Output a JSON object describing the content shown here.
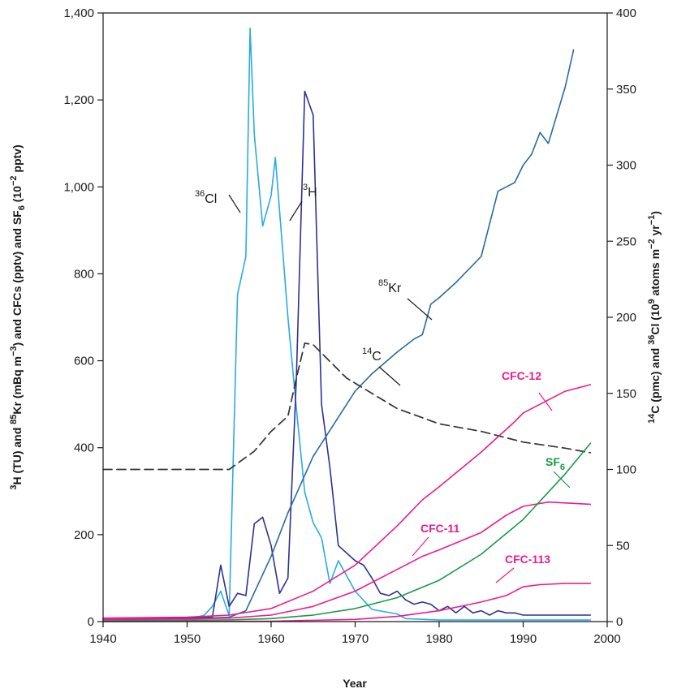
{
  "chart_data": {
    "type": "line",
    "xlabel": "Year",
    "xlim": [
      1940,
      2000
    ],
    "x_ticks": [
      "1940",
      "1950",
      "1960",
      "1970",
      "1980",
      "1990",
      "2000"
    ],
    "ylabel_left": {
      "pre": "",
      "sup1": "3",
      "mid1": "H (TU) and ",
      "sup2": "85",
      "mid2": "Kr (mBq m",
      "sup3": "−3",
      "mid3": ") and CFCs (pptv) and SF",
      "sub": "6",
      "post": " (10",
      "sup4": "−2",
      "end": " pptv)"
    },
    "ylim_left": [
      0,
      1400
    ],
    "y_ticks_left": [
      "0",
      "200",
      "400",
      "600",
      "800",
      "1,000",
      "1,200",
      "1,400"
    ],
    "ylabel_right": {
      "sup1": "14",
      "mid1": "C (pmc) and ",
      "sup2": "36",
      "mid2": "Cl (10",
      "sup3": "9",
      "mid3": " atoms m",
      "sup4": "−2",
      "mid4": " yr",
      "sup5": "−1",
      "end": ")"
    },
    "ylim_right": [
      0,
      400
    ],
    "y_ticks_right": [
      "0",
      "50",
      "100",
      "150",
      "200",
      "250",
      "300",
      "350",
      "400"
    ],
    "colors": {
      "Cl36": "#29abe2",
      "H3": "#2e3192",
      "Kr85": "#2b6a9e",
      "C14": "#333333",
      "CFC": "#ec1c8c",
      "SF6": "#1a9a48"
    },
    "series": [
      {
        "key": "Cl36",
        "axis": "right",
        "style": "solid",
        "label_sup": "36",
        "label_text": "Cl",
        "x": [
          1940,
          1950,
          1952,
          1953,
          1954,
          1955,
          1956,
          1957,
          1957.5,
          1958,
          1959,
          1960,
          1960.5,
          1961,
          1962,
          1963,
          1964,
          1965,
          1966,
          1967,
          1968,
          1970,
          1972,
          1975,
          1976,
          1980,
          1990,
          1998
        ],
        "y": [
          2,
          2,
          4,
          10,
          20,
          4,
          215,
          240,
          390,
          320,
          260,
          280,
          305,
          270,
          200,
          140,
          85,
          65,
          55,
          25,
          40,
          20,
          8,
          5,
          2,
          1,
          1,
          1
        ]
      },
      {
        "key": "H3",
        "axis": "left",
        "style": "solid",
        "label_sup": "3",
        "label_text": "H",
        "x": [
          1940,
          1950,
          1953,
          1954,
          1955,
          1956,
          1957,
          1958,
          1959,
          1960,
          1961,
          1962,
          1963,
          1964,
          1965,
          1966,
          1967,
          1968,
          1970,
          1971,
          1972,
          1973,
          1974,
          1975,
          1976,
          1977,
          1978,
          1979,
          1980,
          1981,
          1982,
          1983,
          1984,
          1985,
          1986,
          1987,
          1988,
          1989,
          1990,
          1995,
          1998
        ],
        "y": [
          5,
          8,
          10,
          130,
          35,
          65,
          60,
          225,
          240,
          175,
          65,
          100,
          560,
          1220,
          1165,
          500,
          355,
          175,
          140,
          130,
          100,
          65,
          60,
          70,
          50,
          40,
          45,
          40,
          25,
          35,
          20,
          35,
          20,
          25,
          15,
          25,
          20,
          20,
          15,
          15,
          15
        ]
      },
      {
        "key": "Kr85",
        "axis": "left",
        "style": "solid",
        "label_sup": "85",
        "label_text": "Kr",
        "x": [
          1940,
          1950,
          1955,
          1957,
          1960,
          1962,
          1965,
          1968,
          1970,
          1972,
          1975,
          1977,
          1978,
          1979,
          1980,
          1982,
          1985,
          1987,
          1989,
          1990,
          1991,
          1992,
          1993,
          1995,
          1996
        ],
        "y": [
          5,
          6,
          10,
          25,
          150,
          250,
          380,
          470,
          530,
          570,
          620,
          650,
          660,
          730,
          745,
          780,
          840,
          990,
          1010,
          1050,
          1075,
          1125,
          1100,
          1230,
          1315
        ]
      },
      {
        "key": "C14",
        "axis": "right",
        "style": "dashed",
        "label_sup": "14",
        "label_text": "C",
        "x": [
          1940,
          1955,
          1958,
          1960,
          1962,
          1963,
          1964,
          1965,
          1969,
          1975,
          1980,
          1985,
          1990,
          1995,
          1998
        ],
        "y": [
          100,
          100,
          112,
          125,
          135,
          160,
          183,
          182,
          160,
          140,
          130,
          125,
          118,
          114,
          111
        ]
      },
      {
        "key": "CFC12",
        "axis": "left",
        "style": "solid",
        "label": "CFC-12",
        "x": [
          1940,
          1950,
          1955,
          1960,
          1965,
          1970,
          1975,
          1978,
          1980,
          1985,
          1989,
          1990,
          1995,
          1998
        ],
        "y": [
          8,
          10,
          15,
          30,
          70,
          130,
          220,
          280,
          310,
          390,
          460,
          480,
          530,
          545
        ]
      },
      {
        "key": "CFC11",
        "axis": "left",
        "style": "solid",
        "label": "CFC-11",
        "x": [
          1940,
          1950,
          1955,
          1960,
          1965,
          1970,
          1975,
          1978,
          1980,
          1985,
          1988,
          1990,
          1993,
          1998
        ],
        "y": [
          5,
          6,
          8,
          15,
          35,
          70,
          120,
          150,
          165,
          205,
          245,
          265,
          275,
          270
        ]
      },
      {
        "key": "SF6",
        "axis": "left",
        "style": "solid",
        "label_main": "SF",
        "label_sub": "6",
        "x": [
          1940,
          1950,
          1955,
          1960,
          1965,
          1970,
          1975,
          1980,
          1985,
          1990,
          1995,
          1998
        ],
        "y": [
          2,
          3,
          4,
          7,
          15,
          30,
          55,
          95,
          155,
          235,
          340,
          410
        ]
      },
      {
        "key": "CFC113",
        "axis": "left",
        "style": "solid",
        "label": "CFC-113",
        "x": [
          1940,
          1960,
          1970,
          1975,
          1980,
          1985,
          1988,
          1990,
          1992,
          1995,
          1998
        ],
        "y": [
          0,
          1,
          5,
          12,
          25,
          45,
          60,
          80,
          85,
          88,
          88
        ]
      }
    ]
  }
}
